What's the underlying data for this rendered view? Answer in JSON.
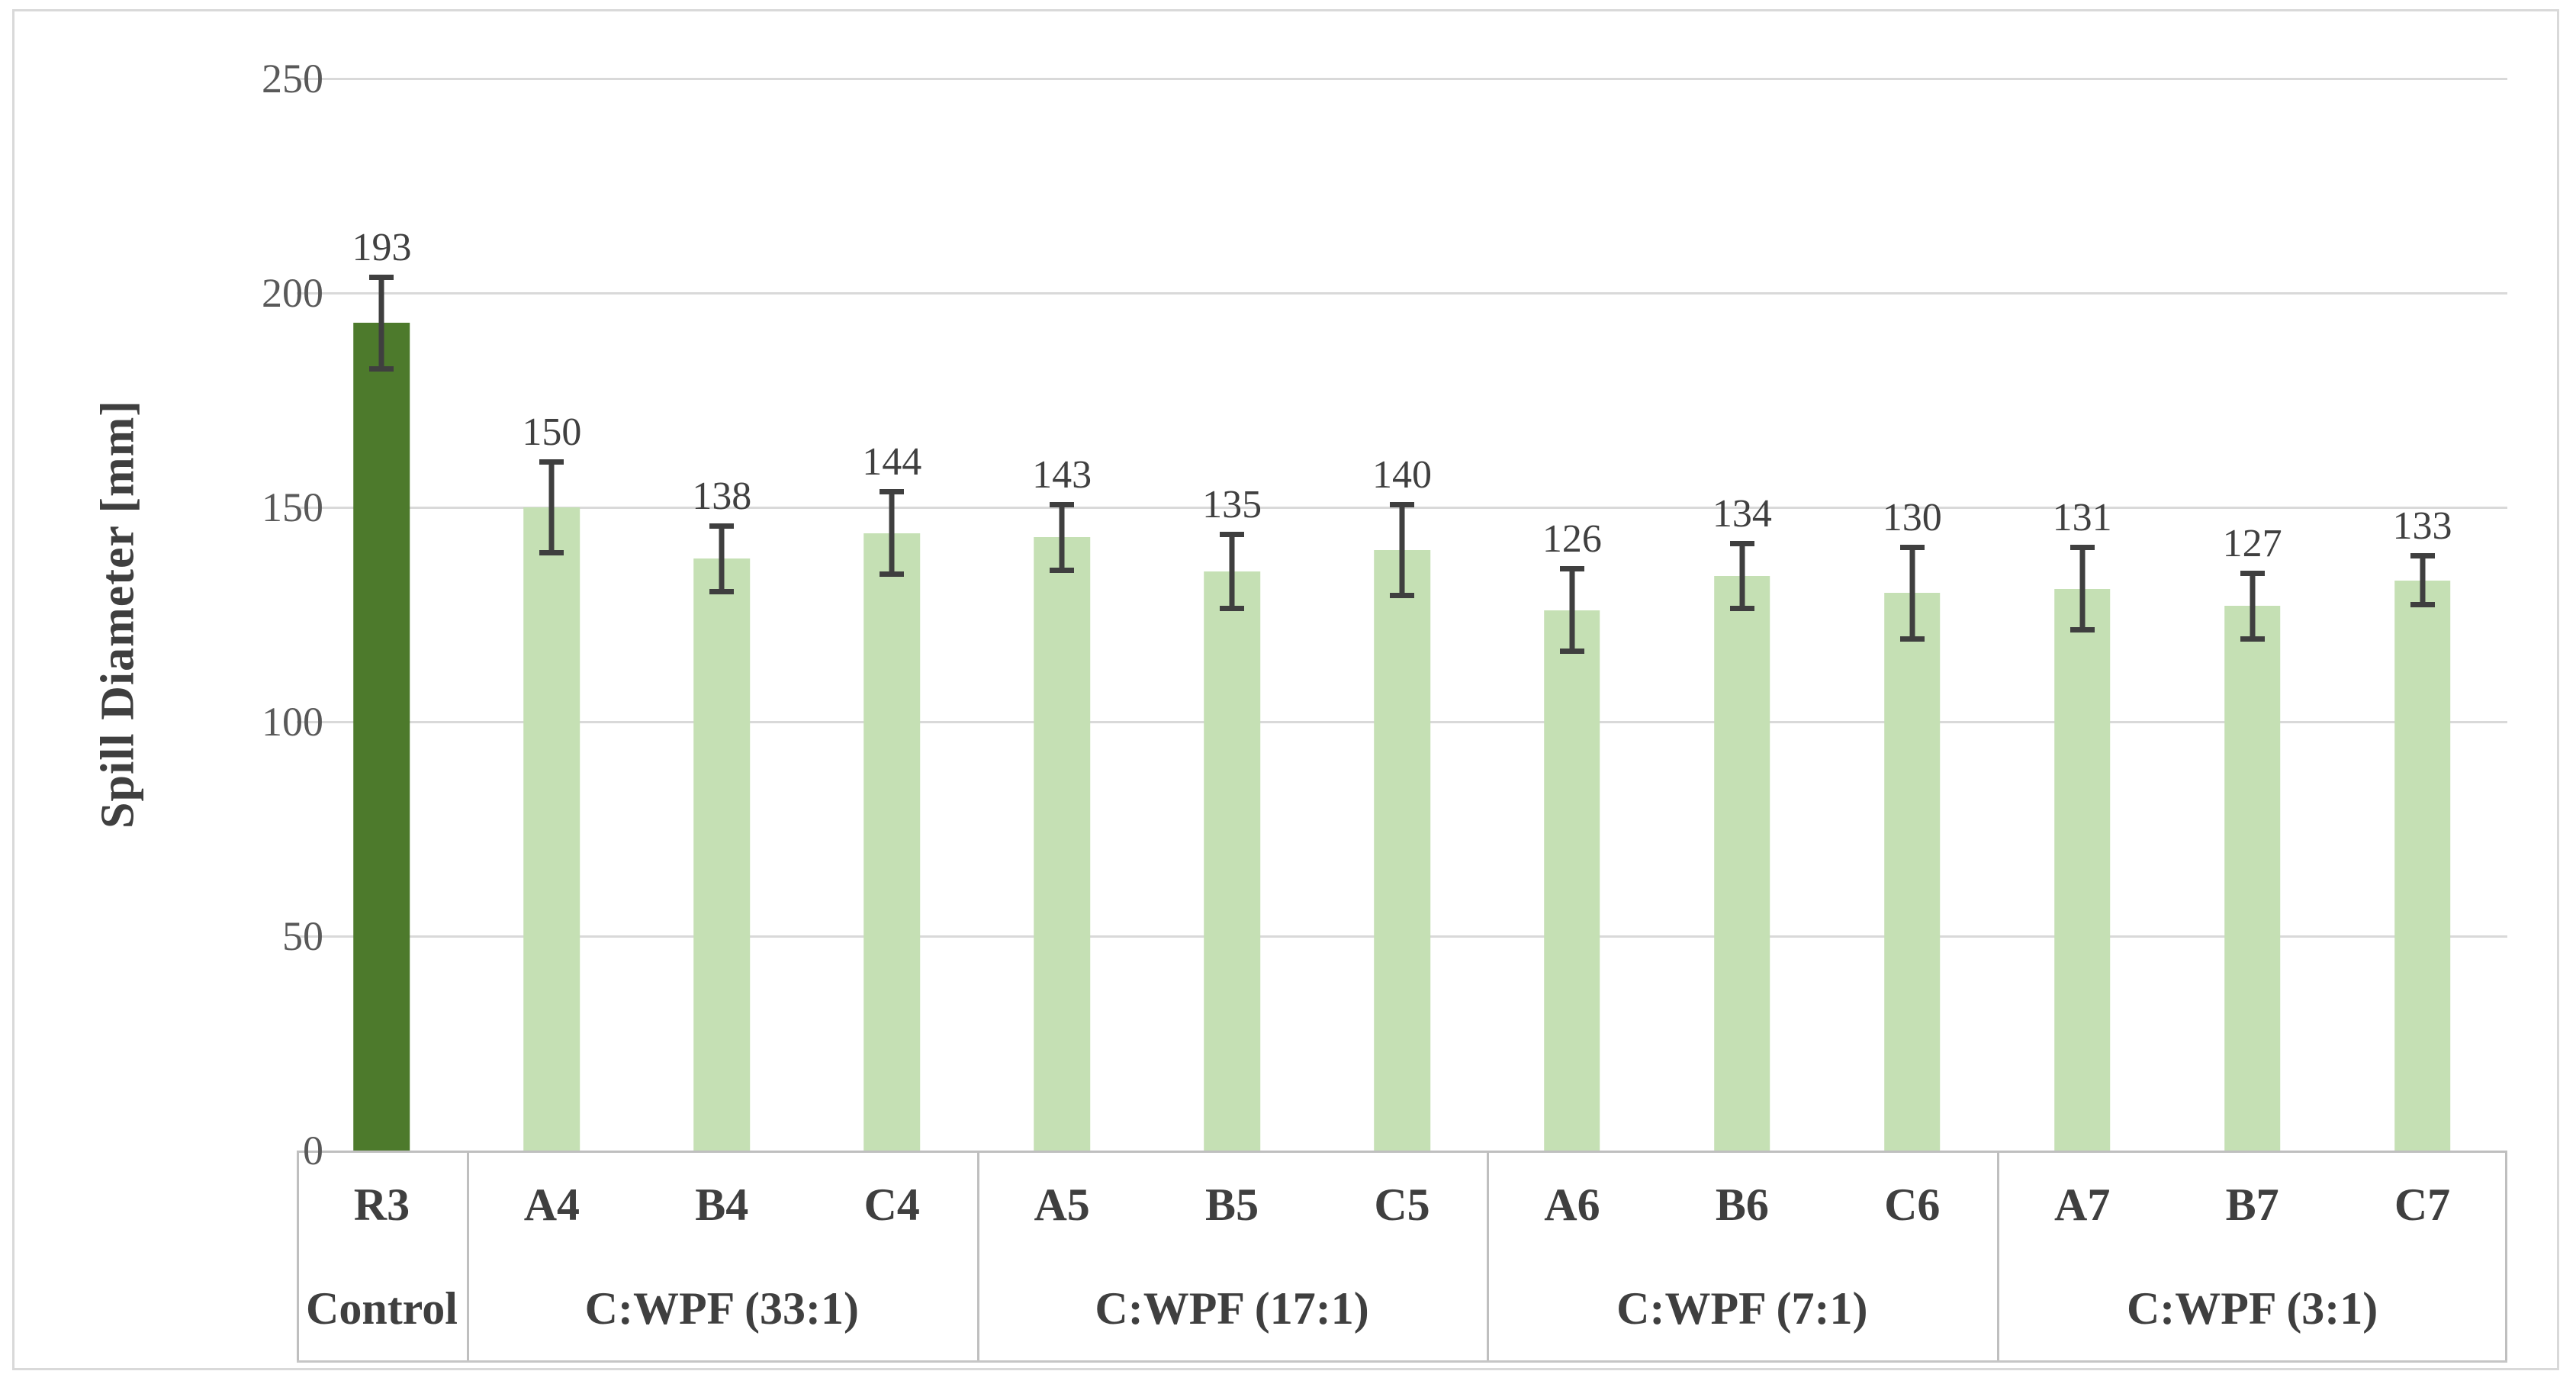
{
  "chart_data": {
    "type": "bar",
    "title": "",
    "xlabel": "",
    "ylabel": "Spill Diameter [mm]",
    "ylim": [
      0,
      250
    ],
    "yticks": [
      0,
      50,
      100,
      150,
      200,
      250
    ],
    "grid": true,
    "legend": "none",
    "categories": [
      "R3",
      "A4",
      "B4",
      "C4",
      "A5",
      "B5",
      "C5",
      "A6",
      "B6",
      "C6",
      "A7",
      "B7",
      "C7"
    ],
    "values": [
      193,
      150,
      138,
      144,
      143,
      135,
      140,
      126,
      134,
      130,
      131,
      127,
      133
    ],
    "error_bars": [
      10,
      10,
      7,
      9,
      7,
      8,
      10,
      9,
      7,
      10,
      9,
      7,
      5
    ],
    "groups": [
      {
        "label": "Control",
        "span": 1
      },
      {
        "label": "C:WPF (33:1)",
        "span": 3
      },
      {
        "label": "C:WPF (17:1)",
        "span": 3
      },
      {
        "label": "C:WPF (7:1)",
        "span": 3
      },
      {
        "label": "C:WPF (3:1)",
        "span": 3
      }
    ],
    "colors": {
      "control_bar": "#4d7a2c",
      "treatment_bar": "#c5e0b4",
      "gridline": "#d9d9d9",
      "axis_line": "#bfbfbf",
      "error_bar": "#3f3f3f",
      "tick_text": "#595959",
      "label_text": "#404040"
    }
  }
}
